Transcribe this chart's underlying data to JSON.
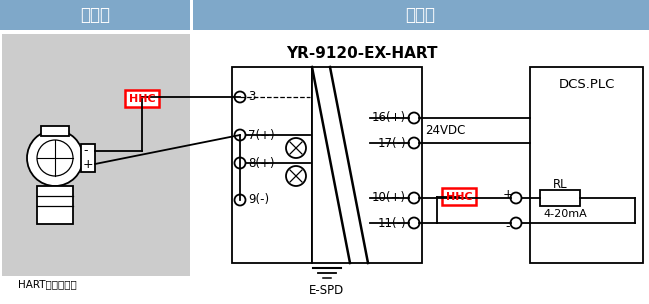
{
  "title_danger": "危险区",
  "title_safe": "安全区",
  "device_label": "YR-9120-EX-HART",
  "transmitter_label": "HART智能变送器",
  "dcs_label": "DCS.PLC",
  "espd_label": "E-SPD",
  "rl_label": "RL",
  "ma_label": "4-20mA",
  "hhc_label": "HHC",
  "vdc_label": "24VDC",
  "header_color": "#7fa8c9",
  "header_text_color": "#ffffff",
  "bg_danger_color": "#cccccc",
  "hhc_border_color": "#ff0000",
  "hhc_text_color": "#ff0000",
  "pin3": "3",
  "pin7": "7(+)",
  "pin8": "8(+)",
  "pin9": "9(-)",
  "pin16": "16(+)",
  "pin17": "17(-)",
  "pin10": "10(+)",
  "pin11": "11(-)"
}
